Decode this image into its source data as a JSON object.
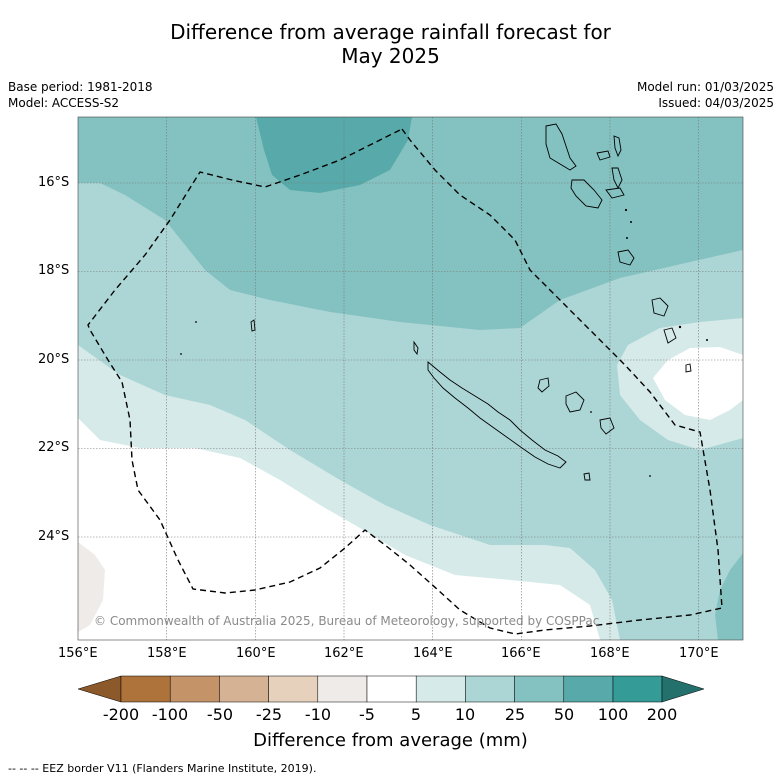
{
  "header": {
    "title_line1": "Difference from average rainfall forecast for",
    "title_line2": "May 2025",
    "base_period": "Base period: 1981-2018",
    "model": "Model: ACCESS-S2",
    "model_run": "Model run: 01/03/2025",
    "issued": "Issued: 04/03/2025"
  },
  "map": {
    "lon_ticks": [
      "156°E",
      "158°E",
      "160°E",
      "162°E",
      "164°E",
      "166°E",
      "168°E",
      "170°E"
    ],
    "lat_ticks": [
      "16°S",
      "18°S",
      "20°S",
      "22°S",
      "24°S"
    ],
    "copyright": "© Commonwealth of Australia 2025, Bureau of Meteorology, supported by COSPPac"
  },
  "colorbar": {
    "labels": [
      "-200",
      "-100",
      "-50",
      "-25",
      "-10",
      "-5",
      "5",
      "10",
      "25",
      "50",
      "100",
      "200"
    ],
    "colors": {
      "below_min": "#8c5a2a",
      "c1": "#ad733b",
      "c2": "#c49368",
      "c3": "#d5b293",
      "c4": "#e6d1bd",
      "c5": "#efebe8",
      "c6": "#ffffff",
      "c7": "#d6eae9",
      "c8": "#acd6d5",
      "c9": "#84c2c1",
      "c10": "#58aaaa",
      "c11": "#359b97",
      "above_max": "#24706c"
    },
    "title": "Difference from average (mm)"
  },
  "legend": {
    "footnote": "--  --  -- EEZ border V11 (Flanders Marine Institute, 2019)."
  }
}
